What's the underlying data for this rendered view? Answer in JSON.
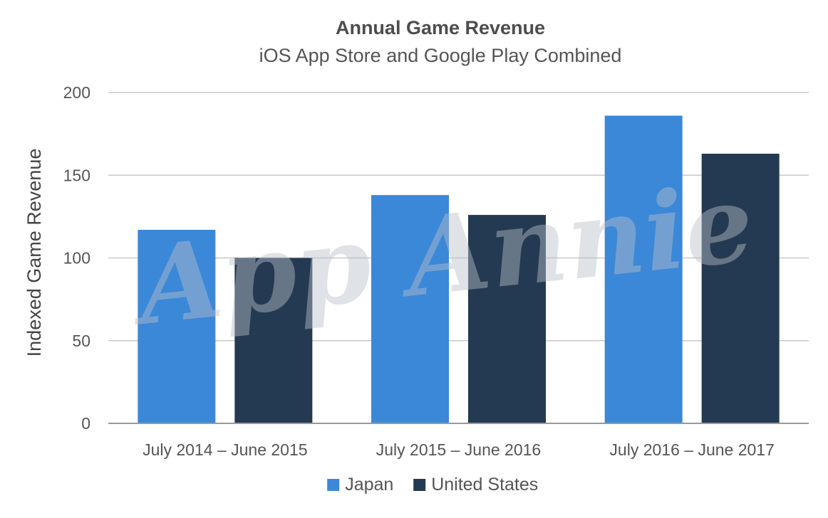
{
  "chart_data": {
    "type": "bar",
    "title": "Annual Game Revenue",
    "subtitle": "iOS App Store and Google Play Combined",
    "xlabel": "",
    "ylabel": "Indexed Game Revenue",
    "categories": [
      "July 2014 – June 2015",
      "July 2015 – June 2016",
      "July 2016 – June 2017"
    ],
    "series": [
      {
        "name": "Japan",
        "color": "#3b88d8",
        "values": [
          117,
          138,
          186
        ]
      },
      {
        "name": "United States",
        "color": "#243a52",
        "values": [
          100,
          126,
          163
        ]
      }
    ],
    "ylim": [
      0,
      200
    ],
    "yticks": [
      0,
      50,
      100,
      150,
      200
    ],
    "grid": true,
    "legend_position": "bottom",
    "watermark": "App Annie",
    "colors": {
      "grid": "#c8c8c8",
      "axis": "#999999"
    }
  }
}
